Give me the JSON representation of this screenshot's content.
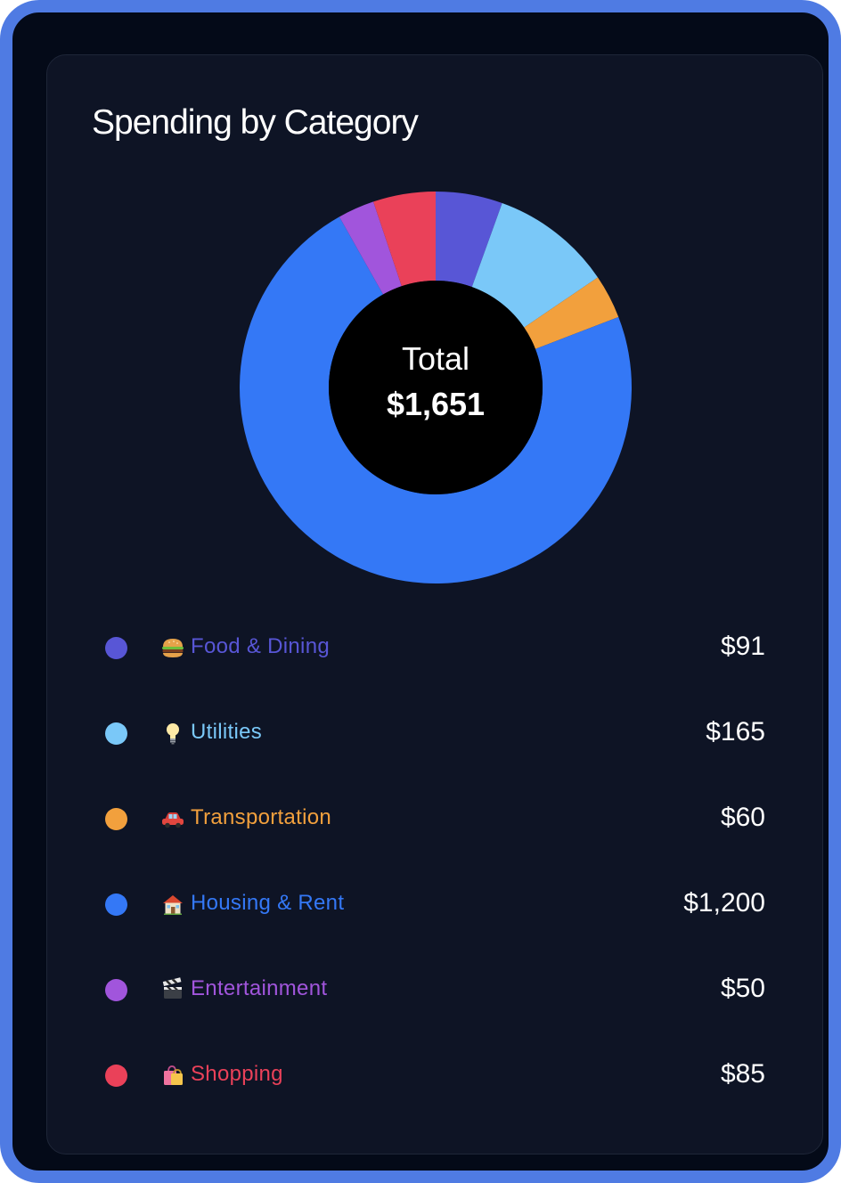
{
  "card": {
    "title": "Spending by Category"
  },
  "chart_data": {
    "type": "pie",
    "title": "Spending by Category",
    "center_label": "Total",
    "center_value": "$1,651",
    "total": 1651,
    "categories": [
      {
        "name": "Food & Dining",
        "icon": "burger-icon",
        "value": 91,
        "value_label": "$91",
        "color": "#5856d6"
      },
      {
        "name": "Utilities",
        "icon": "lightbulb-icon",
        "value": 165,
        "value_label": "$165",
        "color": "#7ac8f8"
      },
      {
        "name": "Transportation",
        "icon": "car-icon",
        "value": 60,
        "value_label": "$60",
        "color": "#f2a03d"
      },
      {
        "name": "Housing & Rent",
        "icon": "house-icon",
        "value": 1200,
        "value_label": "$1,200",
        "color": "#3478f6"
      },
      {
        "name": "Entertainment",
        "icon": "clapperboard-icon",
        "value": 50,
        "value_label": "$50",
        "color": "#a155dc"
      },
      {
        "name": "Shopping",
        "icon": "shopping-bags-icon",
        "value": 85,
        "value_label": "$85",
        "color": "#ea4159"
      }
    ],
    "legend_position": "bottom"
  }
}
